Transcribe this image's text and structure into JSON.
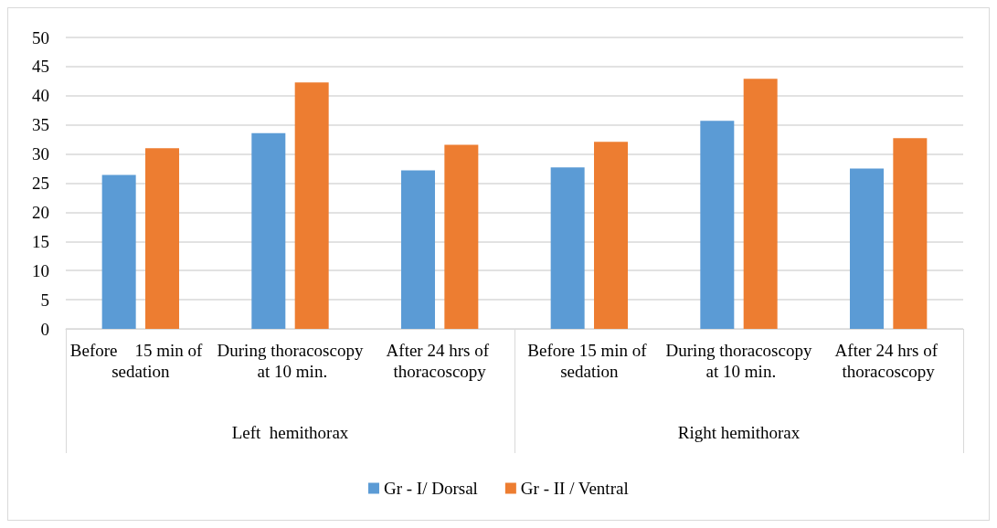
{
  "chart_data": {
    "type": "bar",
    "categories": [
      "Before    15 min of  sedation",
      "During thoracoscopy at 10 min.",
      "After 24 hrs of thoracoscopy",
      "Before 15 min of sedation",
      "During thoracoscopy at 10 min.",
      "After 24 hrs of thoracoscopy"
    ],
    "annotations": [
      "Left  hemithorax",
      "Right hemithorax"
    ],
    "series": [
      {
        "name": "Gr - I/ Dorsal",
        "color": "#5b9bd5",
        "values": [
          26.4,
          33.6,
          27.2,
          27.7,
          35.7,
          27.5
        ]
      },
      {
        "name": "Gr - II / Ventral",
        "color": "#ed7d31",
        "values": [
          31.0,
          42.3,
          31.6,
          32.1,
          42.9,
          32.7
        ]
      }
    ],
    "ylim": [
      0,
      50
    ],
    "yticks": [
      0,
      5,
      10,
      15,
      20,
      25,
      30,
      35,
      40,
      45,
      50
    ],
    "grid": "y",
    "legend": "bottom"
  }
}
